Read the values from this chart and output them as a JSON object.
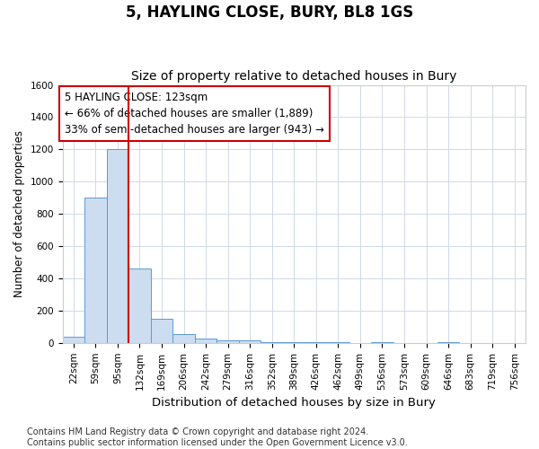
{
  "title": "5, HAYLING CLOSE, BURY, BL8 1GS",
  "subtitle": "Size of property relative to detached houses in Bury",
  "xlabel": "Distribution of detached houses by size in Bury",
  "ylabel": "Number of detached properties",
  "categories": [
    "22sqm",
    "59sqm",
    "95sqm",
    "132sqm",
    "169sqm",
    "206sqm",
    "242sqm",
    "279sqm",
    "316sqm",
    "352sqm",
    "389sqm",
    "426sqm",
    "462sqm",
    "499sqm",
    "536sqm",
    "573sqm",
    "609sqm",
    "646sqm",
    "683sqm",
    "719sqm",
    "756sqm"
  ],
  "values": [
    40,
    900,
    1200,
    460,
    150,
    55,
    25,
    15,
    15,
    5,
    5,
    5,
    5,
    0,
    5,
    0,
    0,
    5,
    0,
    0,
    0
  ],
  "bar_color": "#ccddf0",
  "bar_edge_color": "#5b9bd5",
  "vline_x_index": 2.5,
  "vline_color": "#cc0000",
  "annotation_line1": "5 HAYLING CLOSE: 123sqm",
  "annotation_line2": "← 66% of detached houses are smaller (1,889)",
  "annotation_line3": "33% of semi-detached houses are larger (943) →",
  "annotation_box_color": "#ffffff",
  "annotation_box_edge": "#cc0000",
  "ylim": [
    0,
    1600
  ],
  "yticks": [
    0,
    200,
    400,
    600,
    800,
    1000,
    1200,
    1400,
    1600
  ],
  "footer": "Contains HM Land Registry data © Crown copyright and database right 2024.\nContains public sector information licensed under the Open Government Licence v3.0.",
  "background_color": "#ffffff",
  "grid_color": "#d0d8e8",
  "title_fontsize": 12,
  "subtitle_fontsize": 10,
  "xlabel_fontsize": 9.5,
  "ylabel_fontsize": 8.5,
  "tick_fontsize": 7.5,
  "footer_fontsize": 7,
  "annotation_fontsize": 8.5
}
